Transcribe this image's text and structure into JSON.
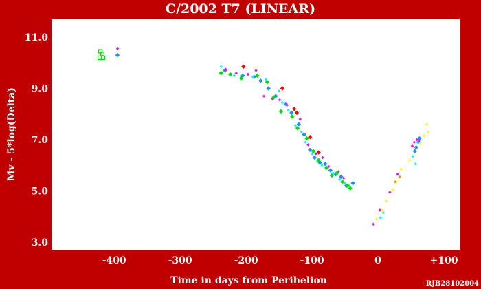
{
  "chart_data": {
    "type": "scatter",
    "title": "C/2002 T7 (LINEAR)",
    "xlabel": "Time in days from Perihelion",
    "ylabel": "Mv - 5*log(Delta)",
    "credit": "RJB28102004",
    "xlim": [
      -495,
      125
    ],
    "ylim": [
      11.7,
      2.7
    ],
    "y_inverted": true,
    "grid": false,
    "xticks": [
      {
        "v": -400,
        "label": "-400"
      },
      {
        "v": -300,
        "label": "-300"
      },
      {
        "v": -200,
        "label": "-200"
      },
      {
        "v": -100,
        "label": "-100"
      },
      {
        "v": 0,
        "label": "0"
      },
      {
        "v": 100,
        "label": "+100"
      }
    ],
    "yticks": [
      {
        "v": 3.0,
        "label": "3.0"
      },
      {
        "v": 5.0,
        "label": "5.0"
      },
      {
        "v": 7.0,
        "label": "7.0"
      },
      {
        "v": 9.0,
        "label": "9.0"
      },
      {
        "v": 11.0,
        "label": "11.0"
      }
    ],
    "series": [
      {
        "color": "#00dd00",
        "marker": "square-open",
        "points": [
          [
            -422,
            10.2
          ],
          [
            -418,
            10.35
          ],
          [
            -417,
            10.2
          ],
          [
            -421,
            10.45
          ]
        ]
      },
      {
        "color": "#1e90ff",
        "marker": "diamond",
        "points": [
          [
            -395,
            10.3
          ],
          [
            -232,
            9.7
          ],
          [
            -205,
            9.5
          ],
          [
            -188,
            9.45
          ],
          [
            -178,
            9.3
          ],
          [
            -166,
            9.0
          ],
          [
            -155,
            8.7
          ],
          [
            -140,
            8.4
          ],
          [
            -131,
            8.05
          ],
          [
            -120,
            7.6
          ],
          [
            -112,
            7.2
          ],
          [
            -103,
            6.6
          ],
          [
            -96,
            6.3
          ],
          [
            -88,
            6.1
          ],
          [
            -80,
            6.05
          ],
          [
            -72,
            5.8
          ],
          [
            -64,
            5.65
          ],
          [
            -56,
            5.55
          ],
          [
            -48,
            5.2
          ],
          [
            -38,
            5.3
          ],
          [
            56,
            6.55
          ],
          [
            58,
            6.7
          ],
          [
            61,
            6.9
          ],
          [
            63,
            7.05
          ]
        ]
      },
      {
        "color": "#ff00ff",
        "marker": "diamond-small",
        "points": [
          [
            -395,
            10.55
          ],
          [
            -231,
            9.75
          ],
          [
            -215,
            9.6
          ],
          [
            -197,
            9.55
          ],
          [
            -185,
            9.7
          ],
          [
            -173,
            8.7
          ],
          [
            -160,
            8.6
          ],
          [
            -149,
            8.55
          ],
          [
            -138,
            8.35
          ],
          [
            -118,
            7.8
          ],
          [
            -106,
            6.8
          ],
          [
            -94,
            6.45
          ],
          [
            -84,
            6.3
          ],
          [
            -75,
            5.95
          ],
          [
            -60,
            5.75
          ],
          [
            -52,
            5.5
          ],
          [
            -7,
            3.7
          ],
          [
            3,
            4.25
          ],
          [
            18,
            4.95
          ],
          [
            30,
            5.65
          ],
          [
            52,
            6.75
          ],
          [
            55,
            6.9
          ],
          [
            59,
            7.0
          ],
          [
            62,
            6.95
          ]
        ]
      },
      {
        "color": "#00ffff",
        "marker": "diamond-small",
        "points": [
          [
            -238,
            9.85
          ],
          [
            -218,
            9.5
          ],
          [
            -190,
            9.45
          ],
          [
            -170,
            9.35
          ],
          [
            -150,
            8.9
          ],
          [
            -145,
            8.45
          ],
          [
            -136,
            8.15
          ],
          [
            -125,
            7.55
          ],
          [
            -116,
            7.3
          ],
          [
            -110,
            6.9
          ],
          [
            -100,
            6.45
          ],
          [
            -92,
            6.15
          ],
          [
            -85,
            6.0
          ],
          [
            -68,
            5.7
          ],
          [
            -58,
            5.45
          ],
          [
            -50,
            5.3
          ],
          [
            -44,
            5.2
          ],
          [
            4,
            3.95
          ],
          [
            8,
            4.15
          ],
          [
            53,
            6.35
          ],
          [
            57,
            6.05
          ],
          [
            60,
            6.9
          ]
        ]
      },
      {
        "color": "#00dd00",
        "marker": "diamond",
        "points": [
          [
            -238,
            9.6
          ],
          [
            -224,
            9.55
          ],
          [
            -207,
            9.4
          ],
          [
            -183,
            9.5
          ],
          [
            -168,
            9.25
          ],
          [
            -158,
            8.65
          ],
          [
            -147,
            8.1
          ],
          [
            -130,
            7.9
          ],
          [
            -122,
            7.45
          ],
          [
            -108,
            7.05
          ],
          [
            -98,
            6.55
          ],
          [
            -90,
            6.2
          ],
          [
            -78,
            5.9
          ],
          [
            -70,
            5.6
          ],
          [
            -62,
            5.7
          ],
          [
            -54,
            5.35
          ],
          [
            -46,
            5.2
          ],
          [
            -42,
            5.1
          ]
        ]
      },
      {
        "color": "#ff0000",
        "marker": "diamond",
        "points": [
          [
            -204,
            9.85
          ],
          [
            -145,
            9.0
          ],
          [
            -127,
            8.2
          ],
          [
            -123,
            8.05
          ],
          [
            -103,
            7.1
          ],
          [
            -90,
            6.5
          ]
        ]
      },
      {
        "color": "#ffff00",
        "marker": "diamond-small",
        "points": [
          [
            -2,
            3.9
          ],
          [
            6,
            4.25
          ],
          [
            12,
            4.6
          ],
          [
            22,
            5.05
          ],
          [
            28,
            5.35
          ],
          [
            35,
            5.85
          ],
          [
            48,
            6.2
          ],
          [
            64,
            6.85
          ],
          [
            70,
            7.15
          ],
          [
            74,
            7.6
          ],
          [
            76,
            7.3
          ]
        ]
      },
      {
        "color": "#ff8800",
        "marker": "diamond-small",
        "points": [
          [
            26,
            5.35
          ],
          [
            33,
            5.55
          ]
        ]
      }
    ]
  }
}
